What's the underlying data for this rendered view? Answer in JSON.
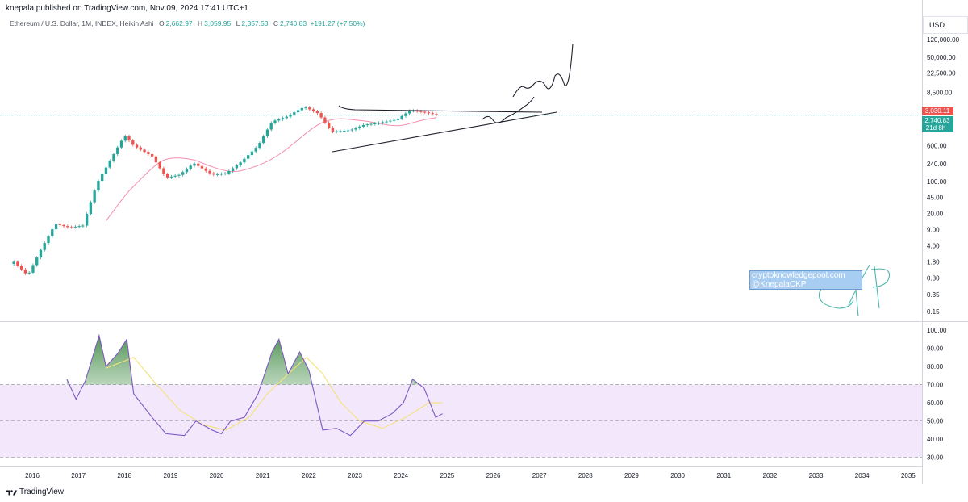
{
  "header": {
    "publisher": "knepala published on TradingView.com, Nov 09, 2024 17:41 UTC+1"
  },
  "legend": {
    "symbol": "Ethereum / U.S. Dollar, 1M, INDEX, Heikin Ashi",
    "o_label": "O",
    "o": "2,662.97",
    "h_label": "H",
    "h": "3,059.95",
    "l_label": "L",
    "l": "2,357.53",
    "c_label": "C",
    "c": "2,740.83",
    "change": "+191.27 (+7.50%)"
  },
  "price_axis": {
    "currency": "USD",
    "ticks": [
      "120,000.00",
      "50,000.00",
      "22,500.00",
      "8,500.00",
      "600.00",
      "240.00",
      "100.00",
      "45.00",
      "20.00",
      "9.00",
      "4.00",
      "1.80",
      "0.80",
      "0.35",
      "0.15"
    ],
    "high_tag": "3,030.11",
    "close_tag": "2,740.83",
    "countdown": "21d 8h"
  },
  "rsi_axis": {
    "ticks": [
      "100.00",
      "90.00",
      "80.00",
      "70.00",
      "60.00",
      "50.00",
      "40.00",
      "30.00"
    ]
  },
  "time_axis": {
    "ticks": [
      "2016",
      "2017",
      "2018",
      "2019",
      "2020",
      "2021",
      "2022",
      "2023",
      "2024",
      "2025",
      "2026",
      "2027",
      "2028",
      "2029",
      "2030",
      "2031",
      "2032",
      "2033",
      "2034",
      "2035"
    ]
  },
  "watermark": {
    "line1": "cryptoknowledgepool.com",
    "line2": "@KnepalaCKP"
  },
  "footer": {
    "brand": "TradingView"
  },
  "colors": {
    "up": "#26a69a",
    "down": "#ef5350",
    "rsi_line": "#7e57c2",
    "rsi_ma": "#f5e27a",
    "rsi_band": "#f2e7fb",
    "ma": "#f48fb1",
    "hand_drawn": "#1e222d",
    "signature": "#4db6ac"
  },
  "chart_data": [
    {
      "type": "candlestick",
      "title": "Ethereum / U.S. Dollar, 1M, INDEX, Heikin Ashi",
      "y_scale": "log",
      "ylim": [
        0.1,
        160000
      ],
      "x_range": [
        2015.3,
        2035.3
      ],
      "closes": [
        {
          "t": 2015.6,
          "c": 1.8
        },
        {
          "t": 2015.9,
          "c": 0.9
        },
        {
          "t": 2016.2,
          "c": 3.5
        },
        {
          "t": 2016.5,
          "c": 12
        },
        {
          "t": 2016.8,
          "c": 10
        },
        {
          "t": 2017.1,
          "c": 11
        },
        {
          "t": 2017.4,
          "c": 90
        },
        {
          "t": 2017.7,
          "c": 300
        },
        {
          "t": 2018.0,
          "c": 1000
        },
        {
          "t": 2018.2,
          "c": 600
        },
        {
          "t": 2018.6,
          "c": 350
        },
        {
          "t": 2018.9,
          "c": 120
        },
        {
          "t": 2019.2,
          "c": 140
        },
        {
          "t": 2019.5,
          "c": 250
        },
        {
          "t": 2019.9,
          "c": 140
        },
        {
          "t": 2020.2,
          "c": 150
        },
        {
          "t": 2020.5,
          "c": 250
        },
        {
          "t": 2020.9,
          "c": 600
        },
        {
          "t": 2021.2,
          "c": 2000
        },
        {
          "t": 2021.5,
          "c": 2500
        },
        {
          "t": 2021.9,
          "c": 4200
        },
        {
          "t": 2022.2,
          "c": 3000
        },
        {
          "t": 2022.5,
          "c": 1200
        },
        {
          "t": 2022.9,
          "c": 1300
        },
        {
          "t": 2023.2,
          "c": 1700
        },
        {
          "t": 2023.5,
          "c": 1850
        },
        {
          "t": 2023.9,
          "c": 2200
        },
        {
          "t": 2024.2,
          "c": 3500
        },
        {
          "t": 2024.5,
          "c": 3200
        },
        {
          "t": 2024.8,
          "c": 2740.83
        }
      ]
    },
    {
      "type": "line",
      "title": "",
      "ylim": [
        25,
        104
      ],
      "bands": [
        30,
        50,
        70
      ],
      "series": [
        {
          "values": [
            {
              "t": 2016.75,
              "v": 73
            },
            {
              "t": 2016.95,
              "v": 62
            },
            {
              "t": 2017.15,
              "v": 72
            },
            {
              "t": 2017.45,
              "v": 97
            },
            {
              "t": 2017.6,
              "v": 80
            },
            {
              "t": 2017.85,
              "v": 87
            },
            {
              "t": 2018.05,
              "v": 95
            },
            {
              "t": 2018.2,
              "v": 65
            },
            {
              "t": 2018.6,
              "v": 52
            },
            {
              "t": 2018.9,
              "v": 43
            },
            {
              "t": 2019.3,
              "v": 42
            },
            {
              "t": 2019.55,
              "v": 50
            },
            {
              "t": 2019.9,
              "v": 45
            },
            {
              "t": 2020.1,
              "v": 43
            },
            {
              "t": 2020.3,
              "v": 50
            },
            {
              "t": 2020.6,
              "v": 52
            },
            {
              "t": 2020.9,
              "v": 65
            },
            {
              "t": 2021.2,
              "v": 88
            },
            {
              "t": 2021.35,
              "v": 95
            },
            {
              "t": 2021.55,
              "v": 76
            },
            {
              "t": 2021.8,
              "v": 88
            },
            {
              "t": 2022.0,
              "v": 78
            },
            {
              "t": 2022.3,
              "v": 45
            },
            {
              "t": 2022.6,
              "v": 46
            },
            {
              "t": 2022.9,
              "v": 42
            },
            {
              "t": 2023.2,
              "v": 50
            },
            {
              "t": 2023.5,
              "v": 50
            },
            {
              "t": 2023.8,
              "v": 54
            },
            {
              "t": 2024.05,
              "v": 60
            },
            {
              "t": 2024.25,
              "v": 73
            },
            {
              "t": 2024.5,
              "v": 68
            },
            {
              "t": 2024.75,
              "v": 52
            },
            {
              "t": 2024.9,
              "v": 54
            }
          ]
        },
        {
          "values": [
            {
              "t": 2017.6,
              "v": 79
            },
            {
              "t": 2018.2,
              "v": 85
            },
            {
              "t": 2018.7,
              "v": 70
            },
            {
              "t": 2019.2,
              "v": 56
            },
            {
              "t": 2019.7,
              "v": 48
            },
            {
              "t": 2020.2,
              "v": 45
            },
            {
              "t": 2020.7,
              "v": 52
            },
            {
              "t": 2021.1,
              "v": 65
            },
            {
              "t": 2021.6,
              "v": 77
            },
            {
              "t": 2021.95,
              "v": 85
            },
            {
              "t": 2022.3,
              "v": 76
            },
            {
              "t": 2022.7,
              "v": 60
            },
            {
              "t": 2023.1,
              "v": 50
            },
            {
              "t": 2023.6,
              "v": 46
            },
            {
              "t": 2024.1,
              "v": 52
            },
            {
              "t": 2024.6,
              "v": 60
            },
            {
              "t": 2024.9,
              "v": 60
            }
          ]
        }
      ]
    }
  ]
}
